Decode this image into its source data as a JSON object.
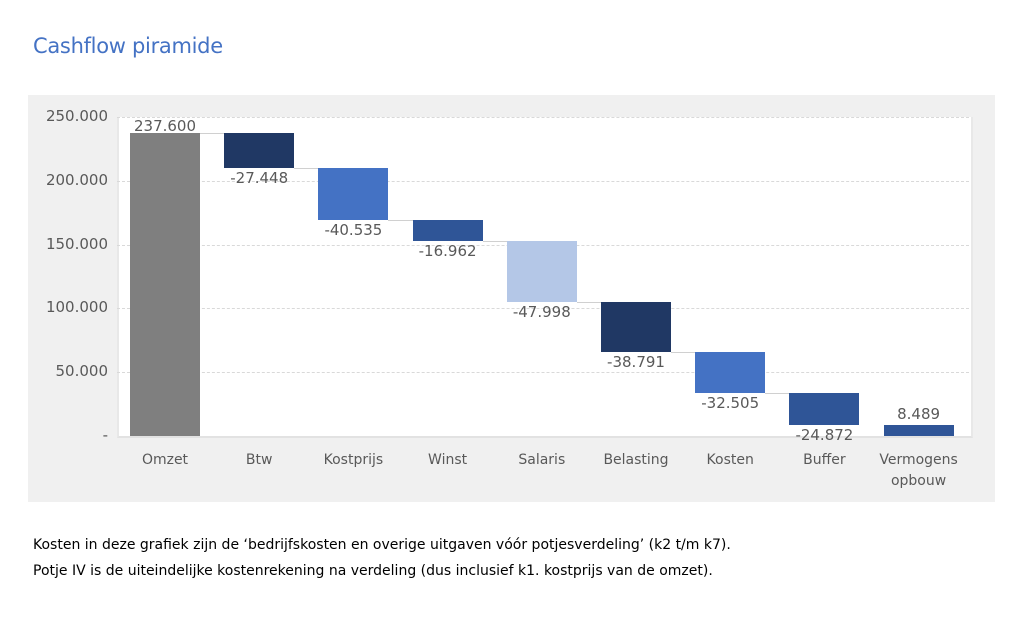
{
  "page": {
    "title": "Cashflow piramide",
    "notes": [
      "Kosten in deze grafiek zijn de ‘bedrijfskosten en overige uitgaven vóór potjesverdeling’ (k2 t/m k7).",
      "Potje IV is de uiteindelijke kostenrekening na verdeling (dus inclusief k1. kostprijs van de omzet)."
    ]
  },
  "chart_data": {
    "type": "bar",
    "subtype": "waterfall",
    "title": "Cashflow piramide",
    "xlabel": "",
    "ylabel": "",
    "ylim": [
      0,
      250000
    ],
    "yticks": [
      "250.000",
      "200.000",
      "150.000",
      "100.000",
      "50.000",
      "-"
    ],
    "grid": true,
    "legend": false,
    "categories": [
      "Omzet",
      "Btw",
      "Kostprijs",
      "Winst",
      "Salaris",
      "Belasting",
      "Kosten",
      "Buffer",
      "Vermogens opbouw"
    ],
    "category_label_lines": [
      [
        "Omzet"
      ],
      [
        "Btw"
      ],
      [
        "Kostprijs"
      ],
      [
        "Winst"
      ],
      [
        "Salaris"
      ],
      [
        "Belasting"
      ],
      [
        "Kosten"
      ],
      [
        "Buffer"
      ],
      [
        "Vermogens",
        "opbouw"
      ]
    ],
    "values": [
      237600,
      -27448,
      -40535,
      -16962,
      -47998,
      -38791,
      -32505,
      -24872,
      8489
    ],
    "value_labels": [
      "237.600",
      "-27.448",
      "-40.535",
      "-16.962",
      "-47.998",
      "-38.791",
      "-32.505",
      "-24.872",
      "8.489"
    ],
    "colors": [
      "#7f7f7f",
      "#203864",
      "#4472c4",
      "#2f5597",
      "#b4c7e7",
      "#203864",
      "#4472c4",
      "#2f5597",
      "#2f5597"
    ]
  }
}
